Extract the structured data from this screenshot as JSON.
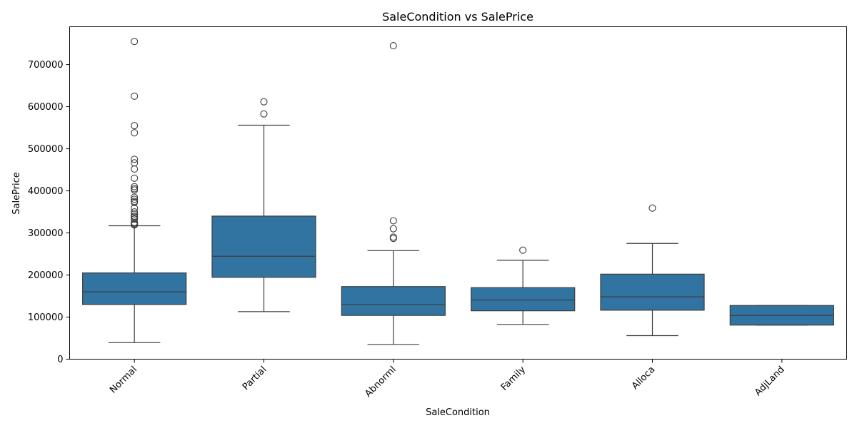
{
  "chart_data": {
    "type": "box",
    "title": "SaleCondition vs SalePrice",
    "xlabel": "SaleCondition",
    "ylabel": "SalePrice",
    "ylim": [
      0,
      790000
    ],
    "yticks": [
      0,
      100000,
      200000,
      300000,
      400000,
      500000,
      600000,
      700000
    ],
    "box_color": "#3274a1",
    "line_color": "#3d3d3d",
    "categories": [
      "Normal",
      "Partial",
      "Abnorml",
      "Family",
      "Alloca",
      "AdjLand"
    ],
    "boxes": [
      {
        "category": "Normal",
        "whisker_low": 39300,
        "q1": 130000,
        "median": 160000,
        "q3": 205000,
        "whisker_high": 317000,
        "outliers": [
          755000,
          625000,
          555000,
          538000,
          475000,
          466500,
          451950,
          430000,
          410000,
          405000,
          402000,
          385000,
          380000,
          375000,
          372500,
          359000,
          350000,
          345000,
          340000,
          337500,
          333000,
          325000,
          322000,
          320000,
          319000
        ]
      },
      {
        "category": "Partial",
        "whisker_low": 113000,
        "q1": 194500,
        "median": 244600,
        "q3": 340000,
        "whisker_high": 556000,
        "outliers": [
          611657,
          582933
        ]
      },
      {
        "category": "Abnorml",
        "whisker_low": 34900,
        "q1": 104000,
        "median": 130000,
        "q3": 172500,
        "whisker_high": 258000,
        "outliers": [
          745000,
          328900,
          310000,
          290000,
          287000
        ]
      },
      {
        "category": "Family",
        "whisker_low": 82500,
        "q1": 115000,
        "median": 140500,
        "q3": 170000,
        "whisker_high": 235000,
        "outliers": [
          259000
        ]
      },
      {
        "category": "Alloca",
        "whisker_low": 55993,
        "q1": 116383,
        "median": 148145,
        "q3": 202043,
        "whisker_high": 275000,
        "outliers": [
          359100
        ]
      },
      {
        "category": "AdjLand",
        "whisker_low": 81000,
        "q1": 81000,
        "median": 104000,
        "q3": 127500,
        "whisker_high": 127500,
        "outliers": []
      }
    ]
  }
}
